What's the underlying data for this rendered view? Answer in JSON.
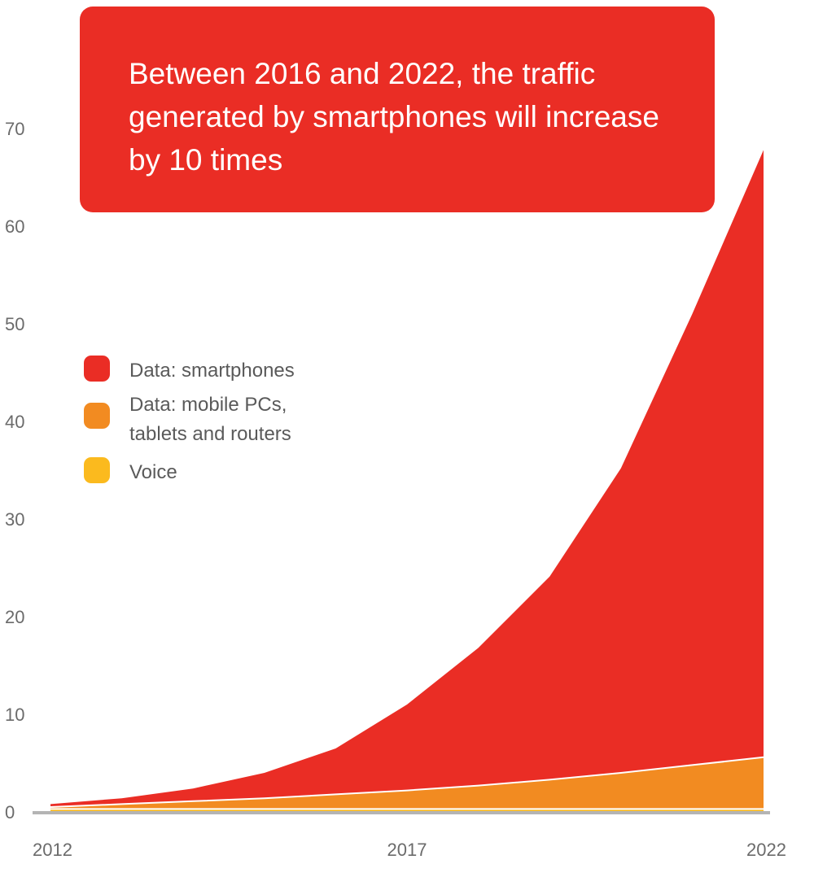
{
  "chart_data": {
    "type": "area",
    "stacked": true,
    "title": "Between 2016 and 2022, the traffic generated by smartphones will increase by 10 times",
    "xlabel": "",
    "ylabel": "",
    "x": [
      2012,
      2013,
      2014,
      2015,
      2016,
      2017,
      2018,
      2019,
      2020,
      2021,
      2022
    ],
    "x_tick_labels": [
      "2012",
      "2017",
      "2022"
    ],
    "x_ticks": [
      2012,
      2017,
      2022
    ],
    "y_ticks": [
      0,
      10,
      20,
      30,
      40,
      50,
      60,
      70
    ],
    "ylim": [
      0,
      70
    ],
    "xlim": [
      2012,
      2022
    ],
    "grid": false,
    "legend_position": "left",
    "series": [
      {
        "name": "Voice",
        "color": "#FBBA1E",
        "values": [
          0.3,
          0.3,
          0.3,
          0.3,
          0.3,
          0.3,
          0.3,
          0.3,
          0.3,
          0.3,
          0.3
        ]
      },
      {
        "name": "Data: mobile PCs, tablets and routers",
        "color": "#F28B21",
        "values": [
          0.2,
          0.5,
          0.8,
          1.1,
          1.5,
          1.9,
          2.4,
          3.0,
          3.7,
          4.5,
          5.3
        ]
      },
      {
        "name": "Data: smartphones",
        "color": "#EA2D25",
        "values": [
          0.3,
          0.6,
          1.3,
          2.6,
          4.7,
          8.8,
          14.1,
          20.8,
          31.2,
          46.2,
          62.2
        ]
      }
    ],
    "legend": [
      {
        "label_lines": [
          "Data: smartphones"
        ],
        "color": "#EA2D25"
      },
      {
        "label_lines": [
          "Data: mobile PCs,",
          "tablets and routers"
        ],
        "color": "#F28B21"
      },
      {
        "label_lines": [
          "Voice"
        ],
        "color": "#FBBA1E"
      }
    ]
  },
  "banner": {
    "text": "Between 2016 and 2022, the traffic generated by smartphones will increase by 10 times",
    "color": "#EA2D25"
  },
  "colors": {
    "axis_line": "#b4b4b4",
    "tick_text": "#6b6b6b"
  }
}
